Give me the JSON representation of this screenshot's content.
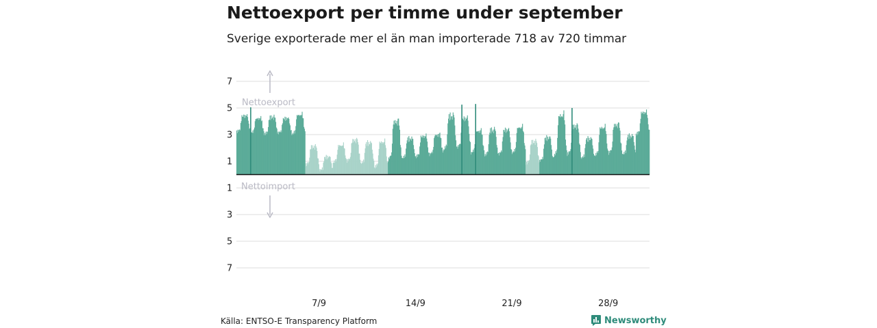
{
  "title": "Nettoexport per timme under september",
  "subtitle": "Sverige exporterade mer el än man importerade 718 av 720 timmar",
  "source": "Källa: ENTSO-E Transparency Platform",
  "brand": {
    "name": "Newsworthy",
    "icon": "newsworthy-logo-icon",
    "color": "#2e8b7a"
  },
  "chart_data": {
    "type": "bar",
    "y_ticks": [
      {
        "value": 7,
        "label": "7"
      },
      {
        "value": 5,
        "label": "5"
      },
      {
        "value": 3,
        "label": "3"
      },
      {
        "value": 1,
        "label": "1"
      },
      {
        "value": -1,
        "label": "1"
      },
      {
        "value": -3,
        "label": "3"
      },
      {
        "value": -5,
        "label": "5"
      },
      {
        "value": -7,
        "label": "7"
      }
    ],
    "x_ticks": [
      {
        "day": 7,
        "label": "7/9"
      },
      {
        "day": 14,
        "label": "14/9"
      },
      {
        "day": 21,
        "label": "21/9"
      },
      {
        "day": 28,
        "label": "28/9"
      }
    ],
    "ylim": [
      -7.5,
      7.5
    ],
    "grid": true,
    "annotations": {
      "export": "Nettoexport",
      "import": "Nettoimport"
    },
    "colors": {
      "dark": "#5bab98",
      "light": "#a9d3c9",
      "peak": "#2e8b7a",
      "axis": "#111111",
      "grid": "#dddddd",
      "annotation": "#b9b9c4"
    },
    "days": [
      {
        "day": 1,
        "night": 3.2,
        "peak": 4.5,
        "tone": "dark"
      },
      {
        "day": 2,
        "night": 3.1,
        "peak": 4.3,
        "tone": "dark"
      },
      {
        "day": 3,
        "night": 3.0,
        "peak": 4.4,
        "tone": "dark"
      },
      {
        "day": 4,
        "night": 3.1,
        "peak": 4.3,
        "tone": "dark"
      },
      {
        "day": 5,
        "night": 3.0,
        "peak": 4.6,
        "tone": "dark"
      },
      {
        "day": 6,
        "night": 0.7,
        "peak": 2.2,
        "tone": "light"
      },
      {
        "day": 7,
        "night": 0.3,
        "peak": 1.4,
        "tone": "light"
      },
      {
        "day": 8,
        "night": 0.9,
        "peak": 2.3,
        "tone": "light"
      },
      {
        "day": 9,
        "night": 1.0,
        "peak": 2.7,
        "tone": "light"
      },
      {
        "day": 10,
        "night": 0.8,
        "peak": 2.5,
        "tone": "light"
      },
      {
        "day": 11,
        "night": 0.5,
        "peak": 2.6,
        "tone": "light"
      },
      {
        "day": 12,
        "night": 1.1,
        "peak": 4.2,
        "tone": "dark"
      },
      {
        "day": 13,
        "night": 1.2,
        "peak": 2.8,
        "tone": "dark"
      },
      {
        "day": 14,
        "night": 1.3,
        "peak": 3.0,
        "tone": "dark"
      },
      {
        "day": 15,
        "night": 1.5,
        "peak": 3.1,
        "tone": "dark"
      },
      {
        "day": 16,
        "night": 1.8,
        "peak": 4.6,
        "tone": "dark"
      },
      {
        "day": 17,
        "night": 2.0,
        "peak": 4.4,
        "tone": "dark"
      },
      {
        "day": 18,
        "night": 1.6,
        "peak": 3.4,
        "tone": "dark"
      },
      {
        "day": 19,
        "night": 1.4,
        "peak": 3.5,
        "tone": "dark"
      },
      {
        "day": 20,
        "night": 1.5,
        "peak": 3.5,
        "tone": "dark"
      },
      {
        "day": 21,
        "night": 1.6,
        "peak": 3.7,
        "tone": "dark"
      },
      {
        "day": 22,
        "night": 0.8,
        "peak": 2.6,
        "tone": "light"
      },
      {
        "day": 23,
        "night": 1.0,
        "peak": 2.9,
        "tone": "dark"
      },
      {
        "day": 24,
        "night": 1.3,
        "peak": 4.7,
        "tone": "dark"
      },
      {
        "day": 25,
        "night": 1.5,
        "peak": 3.8,
        "tone": "dark"
      },
      {
        "day": 26,
        "night": 1.2,
        "peak": 2.8,
        "tone": "dark"
      },
      {
        "day": 27,
        "night": 1.4,
        "peak": 3.7,
        "tone": "dark"
      },
      {
        "day": 28,
        "night": 1.6,
        "peak": 3.9,
        "tone": "dark"
      },
      {
        "day": 29,
        "night": 1.5,
        "peak": 3.0,
        "tone": "dark"
      },
      {
        "day": 30,
        "night": 3.0,
        "peak": 4.8,
        "tone": "dark"
      }
    ],
    "peak_spikes": [
      {
        "hour": 24,
        "value": 5.05
      },
      {
        "hour": 392,
        "value": 5.25
      },
      {
        "hour": 416,
        "value": 5.3
      },
      {
        "hour": 584,
        "value": 5.0
      }
    ]
  }
}
